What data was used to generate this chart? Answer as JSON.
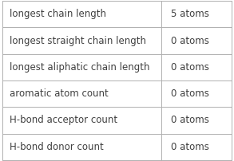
{
  "rows": [
    [
      "longest chain length",
      "5 atoms"
    ],
    [
      "longest straight chain length",
      "0 atoms"
    ],
    [
      "longest aliphatic chain length",
      "0 atoms"
    ],
    [
      "aromatic atom count",
      "0 atoms"
    ],
    [
      "H-bond acceptor count",
      "0 atoms"
    ],
    [
      "H-bond donor count",
      "0 atoms"
    ]
  ],
  "col_split": 0.695,
  "background_color": "#ffffff",
  "border_color": "#b0b0b0",
  "text_color": "#404040",
  "font_size": 8.5,
  "fig_width": 2.93,
  "fig_height": 2.02,
  "dpi": 100
}
